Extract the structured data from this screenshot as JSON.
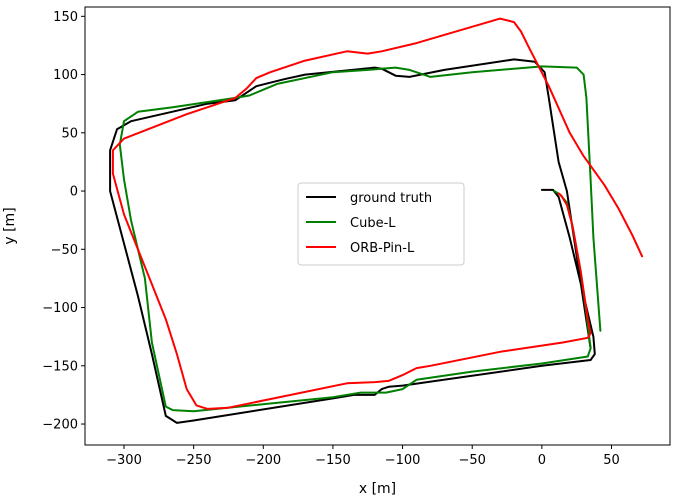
{
  "chart_data": {
    "type": "line",
    "title": "",
    "xlabel": "x [m]",
    "ylabel": "y [m]",
    "xlim": [
      -328,
      92
    ],
    "ylim": [
      -218,
      158
    ],
    "xticks": [
      -300,
      -250,
      -200,
      -150,
      -100,
      -50,
      0,
      50
    ],
    "yticks": [
      -200,
      -150,
      -100,
      -50,
      0,
      50,
      100,
      150
    ],
    "xtick_labels": [
      "−300",
      "−250",
      "−200",
      "−150",
      "−100",
      "−50",
      "0",
      "50"
    ],
    "ytick_labels": [
      "−200",
      "−150",
      "−100",
      "−50",
      "0",
      "50",
      "100",
      "150"
    ],
    "grid": false,
    "legend_position": "center",
    "series": [
      {
        "name": "ground truth",
        "color": "#000000",
        "points": [
          [
            0,
            1
          ],
          [
            8,
            1
          ],
          [
            12,
            -5
          ],
          [
            20,
            -40
          ],
          [
            28,
            -80
          ],
          [
            35,
            -115
          ],
          [
            37,
            -125
          ],
          [
            38,
            -140
          ],
          [
            35,
            -145
          ],
          [
            0,
            -150
          ],
          [
            -100,
            -167
          ],
          [
            -110,
            -168
          ],
          [
            -115,
            -170
          ],
          [
            -120,
            -175
          ],
          [
            -135,
            -175
          ],
          [
            -150,
            -178
          ],
          [
            -250,
            -197
          ],
          [
            -262,
            -199
          ],
          [
            -270,
            -193
          ],
          [
            -280,
            -140
          ],
          [
            -290,
            -90
          ],
          [
            -300,
            -45
          ],
          [
            -310,
            0
          ],
          [
            -310,
            35
          ],
          [
            -305,
            53
          ],
          [
            -295,
            60
          ],
          [
            -240,
            75
          ],
          [
            -220,
            78
          ],
          [
            -205,
            90
          ],
          [
            -185,
            96
          ],
          [
            -170,
            100
          ],
          [
            -120,
            106
          ],
          [
            -115,
            105
          ],
          [
            -105,
            99
          ],
          [
            -95,
            98
          ],
          [
            -70,
            104
          ],
          [
            -20,
            113
          ],
          [
            -5,
            111
          ],
          [
            2,
            102
          ],
          [
            5,
            80
          ],
          [
            12,
            25
          ],
          [
            18,
            0
          ],
          [
            35,
            -135
          ]
        ]
      },
      {
        "name": "Cube-L",
        "color": "#008000",
        "points": [
          [
            9,
            0
          ],
          [
            13,
            -3
          ],
          [
            18,
            -10
          ],
          [
            22,
            -30
          ],
          [
            28,
            -70
          ],
          [
            32,
            -105
          ],
          [
            34,
            -125
          ],
          [
            35,
            -135
          ],
          [
            33,
            -142
          ],
          [
            0,
            -148
          ],
          [
            -50,
            -155
          ],
          [
            -90,
            -162
          ],
          [
            -100,
            -170
          ],
          [
            -112,
            -173
          ],
          [
            -130,
            -173
          ],
          [
            -150,
            -177
          ],
          [
            -250,
            -189
          ],
          [
            -265,
            -188
          ],
          [
            -270,
            -185
          ],
          [
            -280,
            -130
          ],
          [
            -285,
            -75
          ],
          [
            -295,
            -25
          ],
          [
            -300,
            10
          ],
          [
            -303,
            40
          ],
          [
            -300,
            60
          ],
          [
            -290,
            68
          ],
          [
            -265,
            72
          ],
          [
            -220,
            80
          ],
          [
            -210,
            82
          ],
          [
            -200,
            87
          ],
          [
            -190,
            92
          ],
          [
            -150,
            102
          ],
          [
            -125,
            104
          ],
          [
            -105,
            106
          ],
          [
            -95,
            104
          ],
          [
            -85,
            100
          ],
          [
            -80,
            98
          ],
          [
            -50,
            102
          ],
          [
            0,
            107
          ],
          [
            25,
            106
          ],
          [
            30,
            100
          ],
          [
            32,
            80
          ],
          [
            35,
            10
          ],
          [
            37,
            -40
          ],
          [
            42,
            -120
          ]
        ]
      },
      {
        "name": "ORB-Pin-L",
        "color": "#ff0000",
        "points": [
          [
            12,
            -2
          ],
          [
            14,
            -4
          ],
          [
            18,
            -12
          ],
          [
            22,
            -30
          ],
          [
            28,
            -70
          ],
          [
            33,
            -110
          ],
          [
            35,
            -122
          ],
          [
            33,
            -126
          ],
          [
            15,
            -130
          ],
          [
            -30,
            -138
          ],
          [
            -80,
            -150
          ],
          [
            -90,
            -152
          ],
          [
            -100,
            -158
          ],
          [
            -110,
            -163
          ],
          [
            -120,
            -164
          ],
          [
            -140,
            -165
          ],
          [
            -225,
            -186
          ],
          [
            -240,
            -187
          ],
          [
            -248,
            -184
          ],
          [
            -255,
            -170
          ],
          [
            -262,
            -140
          ],
          [
            -270,
            -110
          ],
          [
            -280,
            -80
          ],
          [
            -290,
            -50
          ],
          [
            -300,
            -20
          ],
          [
            -308,
            15
          ],
          [
            -308,
            35
          ],
          [
            -300,
            45
          ],
          [
            -255,
            66
          ],
          [
            -220,
            80
          ],
          [
            -212,
            88
          ],
          [
            -205,
            97
          ],
          [
            -195,
            102
          ],
          [
            -170,
            112
          ],
          [
            -140,
            120
          ],
          [
            -125,
            118
          ],
          [
            -115,
            120
          ],
          [
            -90,
            127
          ],
          [
            -30,
            148
          ],
          [
            -20,
            145
          ],
          [
            -15,
            137
          ],
          [
            -10,
            125
          ],
          [
            5,
            90
          ],
          [
            20,
            50
          ],
          [
            30,
            30
          ],
          [
            45,
            5
          ],
          [
            55,
            -15
          ],
          [
            65,
            -38
          ],
          [
            72,
            -56
          ]
        ]
      }
    ]
  }
}
